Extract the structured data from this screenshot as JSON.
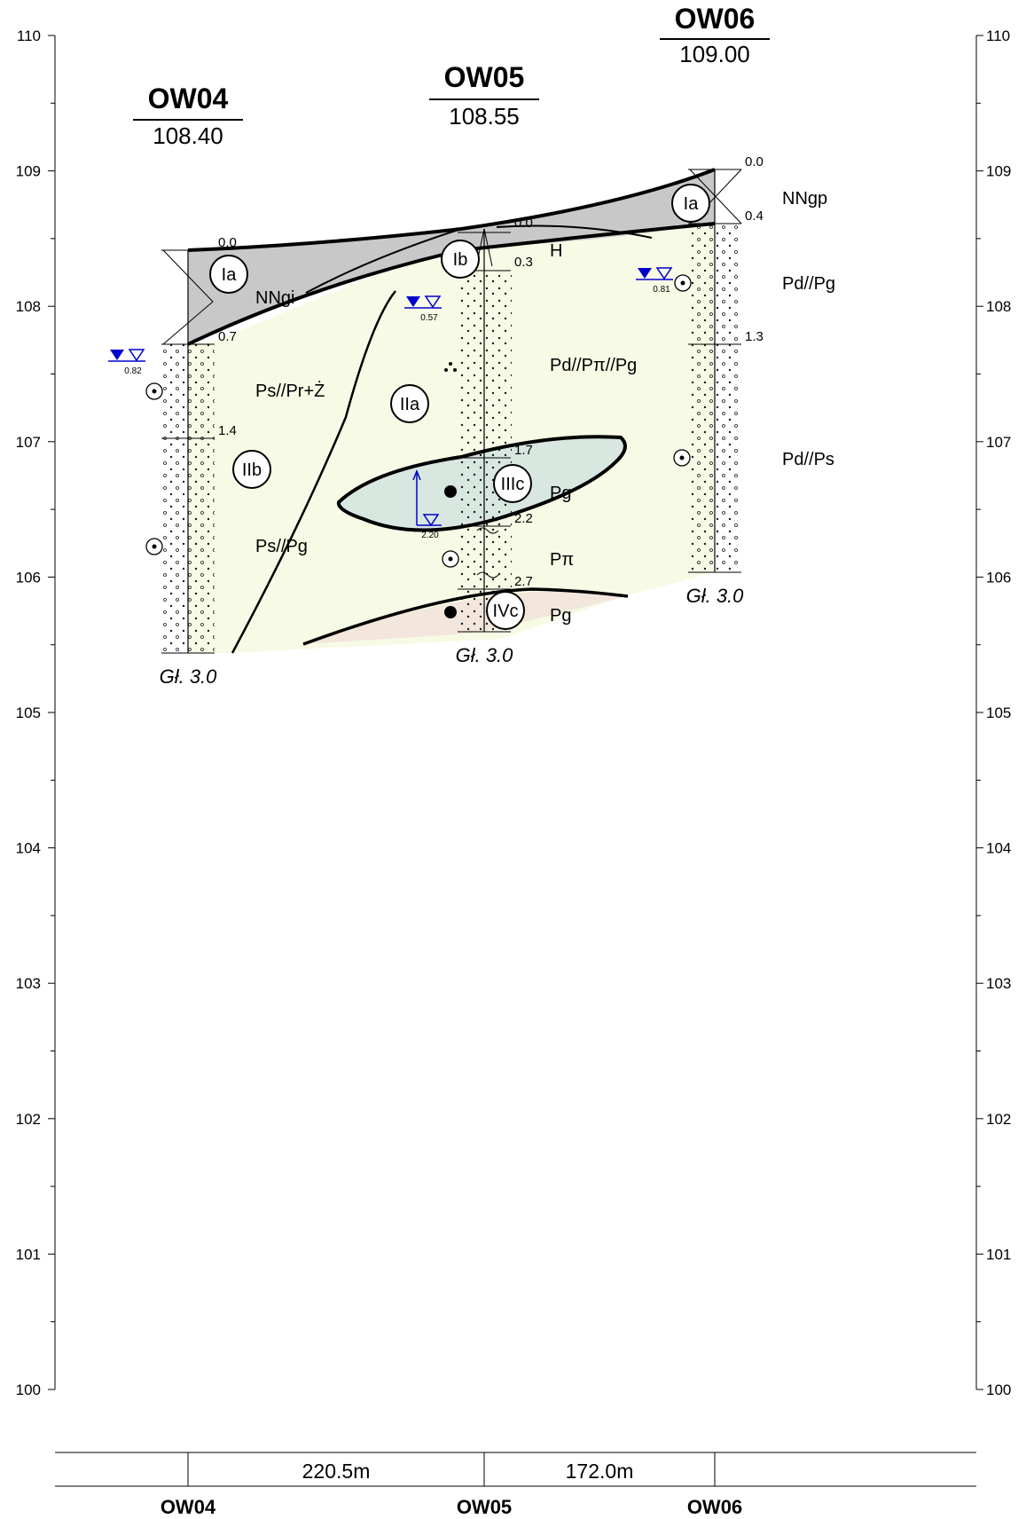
{
  "axis": {
    "min": 100,
    "max": 110,
    "ticks": [
      "100",
      "101",
      "102",
      "103",
      "104",
      "105",
      "106",
      "107",
      "108",
      "109",
      "110"
    ]
  },
  "boreholes": [
    {
      "name": "OW04",
      "elevation": "108.40",
      "depths": [
        "0.0",
        "0.7",
        "1.4"
      ],
      "final_depth": "Gł. 3.0",
      "water_level": "0.82"
    },
    {
      "name": "OW05",
      "elevation": "108.55",
      "depths": [
        "0.0",
        "0.3",
        "1.7",
        "2.2",
        "2.7"
      ],
      "final_depth": "Gł. 3.0",
      "water_level_1": "0.57",
      "water_level_2": "2.20"
    },
    {
      "name": "OW06",
      "elevation": "109.00",
      "depths": [
        "0.0",
        "0.4",
        "1.3"
      ],
      "final_depth": "Gł. 3.0",
      "water_level": "0.81"
    }
  ],
  "soil_labels": {
    "nngi": "NNgi",
    "nngp": "NNgp",
    "h": "H",
    "ps_pr_z": "Ps//Pr+Ż",
    "ps_pg": "Ps//Pg",
    "pd_ppi_pg": "Pd//Pπ//Pg",
    "pd_pg": "Pd//Pg",
    "pd_ps": "Pd//Ps",
    "pg_iiic": "Pg",
    "ppi": "Pπ",
    "pg_ivc": "Pg"
  },
  "layer_ids": {
    "ia_left": "Ia",
    "ia_right": "Ia",
    "ib": "Ib",
    "iia": "IIa",
    "iib": "IIb",
    "iiic": "IIIc",
    "ivc": "IVc"
  },
  "distances": [
    "220.5m",
    "172.0m"
  ],
  "footer": [
    "OW04",
    "OW05",
    "OW06"
  ],
  "colors": {
    "fill_anthropogenic": "#c8c8c8",
    "fill_sand": "#f7fbe6",
    "fill_lens": "#d8e7e0",
    "fill_bottom": "#f3e6dc",
    "water": "#0000cc"
  }
}
